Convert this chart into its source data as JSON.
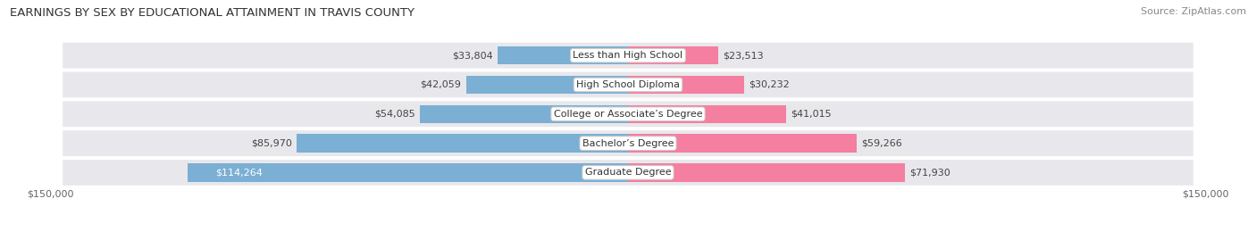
{
  "title": "EARNINGS BY SEX BY EDUCATIONAL ATTAINMENT IN TRAVIS COUNTY",
  "source": "Source: ZipAtlas.com",
  "categories": [
    "Less than High School",
    "High School Diploma",
    "College or Associate’s Degree",
    "Bachelor’s Degree",
    "Graduate Degree"
  ],
  "male_values": [
    33804,
    42059,
    54085,
    85970,
    114264
  ],
  "female_values": [
    23513,
    30232,
    41015,
    59266,
    71930
  ],
  "male_color": "#7bafd4",
  "female_color": "#f47fa0",
  "max_value": 150000,
  "row_bg_color": "#e8e8ec",
  "row_sep_color": "#d0d0d8",
  "title_fontsize": 9.5,
  "source_fontsize": 8,
  "label_fontsize": 8,
  "category_fontsize": 8
}
